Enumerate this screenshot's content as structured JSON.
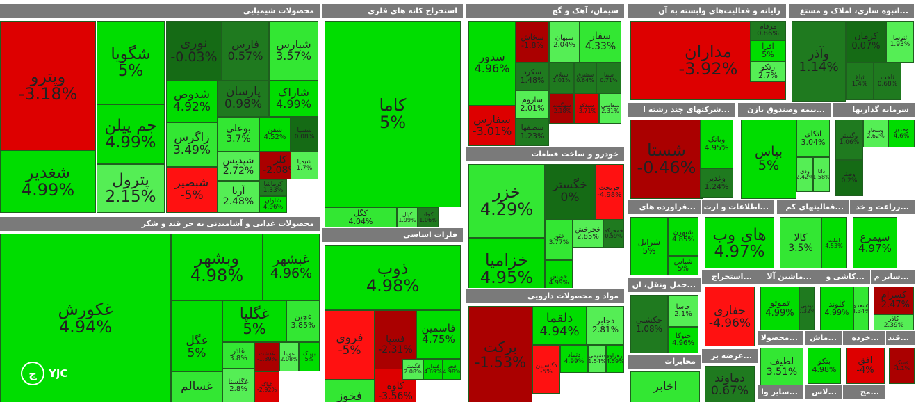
{
  "watermark": "YJC",
  "chart_data": {
    "type": "treemap",
    "colors": {
      "up_strong": "#00dd00",
      "up": "#33e733",
      "up_light": "#55ee55",
      "down": "#dd0000",
      "down_strong": "#ff1111",
      "down_dark": "#990000",
      "flat_dark": "#156b15"
    },
    "sectors": [
      {
        "name": "محصولات شیمیایی",
        "tiles": [
          {
            "symbol": "وپترو",
            "change": "-3.18%"
          },
          {
            "symbol": "شغدیر",
            "change": "4.99%"
          },
          {
            "symbol": "شگویا",
            "change": "5%"
          },
          {
            "symbol": "جم پیلن",
            "change": "4.99%"
          },
          {
            "symbol": "پترول",
            "change": "2.15%"
          },
          {
            "symbol": "نوری",
            "change": "-0.03%"
          },
          {
            "symbol": "فارس",
            "change": "0.57%"
          },
          {
            "symbol": "شپارس",
            "change": "3.57%"
          },
          {
            "symbol": "شدوص",
            "change": "4.92%"
          },
          {
            "symbol": "زاگرس",
            "change": "3.49%"
          },
          {
            "symbol": "شبصیر",
            "change": "-5%"
          },
          {
            "symbol": "پارسان",
            "change": "0.98%"
          },
          {
            "symbol": "شاراک",
            "change": "4.99%"
          },
          {
            "symbol": "بوعلی",
            "change": "3.7%"
          },
          {
            "symbol": "شفن",
            "change": "4.52%"
          },
          {
            "symbol": "شپدیس",
            "change": "2.72%"
          },
          {
            "symbol": "آریا",
            "change": "2.48%"
          },
          {
            "symbol": "کلر",
            "change": "-2.08%"
          },
          {
            "symbol": "شسپا",
            "change": "0.08%"
          },
          {
            "symbol": "شیمیا",
            "change": "1.7%"
          },
          {
            "symbol": "کرماشا",
            "change": "1.33%"
          },
          {
            "symbol": "شاوان",
            "change": "4.96%"
          }
        ]
      },
      {
        "name": "محصولات غذایی و آشامیدنی به جز قند و شکر",
        "tiles": [
          {
            "symbol": "غکورش",
            "change": "4.94%"
          },
          {
            "symbol": "وبشهر",
            "change": "4.98%"
          },
          {
            "symbol": "غبشهر",
            "change": "4.96%"
          },
          {
            "symbol": "غگل",
            "change": "5%"
          },
          {
            "symbol": "غگلپا",
            "change": "5%"
          },
          {
            "symbol": "غچین",
            "change": "3.85%"
          },
          {
            "symbol": "غسالم",
            "change": ""
          },
          {
            "symbol": "غاذر",
            "change": "3.8%"
          },
          {
            "symbol": "غگلستا",
            "change": "2.8%"
          },
          {
            "symbol": "غدشت",
            "change": "-1.39%"
          },
          {
            "symbol": "غپاک",
            "change": "-2.92%"
          },
          {
            "symbol": "غویتا",
            "change": "2.08%"
          },
          {
            "symbol": "بهپاک",
            "change": "5%"
          }
        ]
      },
      {
        "name": "استخراج کانه های فلزی",
        "tiles": [
          {
            "symbol": "کاما",
            "change": "5%"
          },
          {
            "symbol": "کگل",
            "change": "4.04%"
          },
          {
            "symbol": "کیال",
            "change": "1.99%"
          },
          {
            "symbol": "کجاد",
            "change": "1.06%"
          }
        ]
      },
      {
        "name": "فلزات اساسی",
        "tiles": [
          {
            "symbol": "ذوب",
            "change": "4.98%"
          },
          {
            "symbol": "فروی",
            "change": "-5%"
          },
          {
            "symbol": "فسپا",
            "change": "-2.31%"
          },
          {
            "symbol": "فاسمین",
            "change": "4.75%"
          },
          {
            "symbol": "فخوز",
            "change": ""
          },
          {
            "symbol": "کاوه",
            "change": "-3.56%"
          },
          {
            "symbol": "فگستر",
            "change": "2.08%"
          },
          {
            "symbol": "فنوال",
            "change": "4.69%"
          },
          {
            "symbol": "فجر",
            "change": "4.98%"
          }
        ]
      },
      {
        "name": "سیمان، آهک و گچ",
        "tiles": [
          {
            "symbol": "سدور",
            "change": "4.96%"
          },
          {
            "symbol": "سفارس",
            "change": "-3.01%"
          },
          {
            "symbol": "سخاش",
            "change": "-1.8%"
          },
          {
            "symbol": "سبهان",
            "change": "2.04%"
          },
          {
            "symbol": "سفار",
            "change": "4.33%"
          },
          {
            "symbol": "سکرد",
            "change": "1.48%"
          },
          {
            "symbol": "ساروم",
            "change": "2.01%"
          },
          {
            "symbol": "سصفها",
            "change": "1.23%"
          },
          {
            "symbol": "سیلام",
            "change": "1.01%"
          },
          {
            "symbol": "سشرق",
            "change": "0.64%"
          },
          {
            "symbol": "سیتا",
            "change": "0.71%"
          },
          {
            "symbol": "سهگمت",
            "change": "-2.18%"
          },
          {
            "symbol": "سیدکو",
            "change": "-3.71%"
          },
          {
            "symbol": "سفاسی",
            "change": "2.31%"
          }
        ]
      },
      {
        "name": "خودرو و ساخت قطعات",
        "tiles": [
          {
            "symbol": "خزر",
            "change": "4.29%"
          },
          {
            "symbol": "خزامیا",
            "change": "4.95%"
          },
          {
            "symbol": "خگستر",
            "change": "0%"
          },
          {
            "symbol": "خریخت",
            "change": "-4.98%"
          },
          {
            "symbol": "ختور",
            "change": "3.77%"
          },
          {
            "symbol": "خچرخش",
            "change": "2.85%"
          },
          {
            "symbol": "خمحرکه",
            "change": "0.59%"
          },
          {
            "symbol": "خویش",
            "change": "4.99%"
          }
        ]
      },
      {
        "name": "مواد و محصولات دارویی",
        "tiles": [
          {
            "symbol": "برکت",
            "change": "-1.53%"
          },
          {
            "symbol": "دلقما",
            "change": "4.94%"
          },
          {
            "symbol": "دجابر",
            "change": "2.81%"
          },
          {
            "symbol": "دکاسپین",
            "change": "-5%"
          },
          {
            "symbol": "دتماد",
            "change": "4.99%"
          },
          {
            "symbol": "دشیمی",
            "change": "1.54%"
          },
          {
            "symbol": "دزهراوی",
            "change": "4.59%"
          }
        ]
      },
      {
        "name": "رایانه و فعالیت‌های وابسته به آن",
        "tiles": [
          {
            "symbol": "مداران",
            "change": "-3.92%"
          },
          {
            "symbol": "مرقام",
            "change": "0.86%"
          },
          {
            "symbol": "افرا",
            "change": "5%"
          },
          {
            "symbol": "رتکو",
            "change": "2.7%"
          }
        ]
      },
      {
        "name": "...انبوه سازی، املاک و مستغ",
        "tiles": [
          {
            "symbol": "وآذر",
            "change": "1.14%"
          },
          {
            "symbol": "کرمان",
            "change": "0.07%"
          },
          {
            "symbol": "ثنوسا",
            "change": "1.93%"
          },
          {
            "symbol": "ثباغ",
            "change": "1.4%"
          },
          {
            "symbol": "ثاخت",
            "change": "0.68%"
          }
        ]
      },
      {
        "name": "...شرکتهای چند رشته ا",
        "tiles": [
          {
            "symbol": "شستا",
            "change": "-0.46%"
          },
          {
            "symbol": "وبانک",
            "change": "4.95%"
          },
          {
            "symbol": "وغدیر",
            "change": "1.24%"
          }
        ]
      },
      {
        "name": "...بیمه وصندوق بازن",
        "tiles": [
          {
            "symbol": "بپاس",
            "change": "5%"
          },
          {
            "symbol": "اتکای",
            "change": "3.04%"
          },
          {
            "symbol": "ودی",
            "change": "2.42%"
          },
          {
            "symbol": "دانا",
            "change": "1.58%"
          }
        ]
      },
      {
        "name": "سرمایه گذاریها",
        "tiles": [
          {
            "symbol": "وگستر",
            "change": "1.06%"
          },
          {
            "symbol": "وسخاو",
            "change": "2.62%"
          },
          {
            "symbol": "ومدیر",
            "change": "4.6%"
          },
          {
            "symbol": "وصنا",
            "change": "0.2%"
          }
        ]
      },
      {
        "name": "...فراورده های",
        "tiles": [
          {
            "symbol": "شرانل",
            "change": "5%"
          },
          {
            "symbol": "شبهرن",
            "change": "4.85%"
          },
          {
            "symbol": "شپاس",
            "change": "5%"
          }
        ]
      },
      {
        "name": "...اطلاعات و ارت",
        "tiles": [
          {
            "symbol": "های وب",
            "change": "4.97%"
          }
        ]
      },
      {
        "name": "...فعالیتهای کم",
        "tiles": [
          {
            "symbol": "کالا",
            "change": "3.5%"
          },
          {
            "symbol": "املت",
            "change": "4.53%"
          }
        ]
      },
      {
        "name": "...زراعت و خد",
        "tiles": [
          {
            "symbol": "سیمرغ",
            "change": "4.97%"
          }
        ]
      },
      {
        "name": "...حمل ونقل، ان",
        "tiles": [
          {
            "symbol": "حکشتی",
            "change": "1.08%"
          },
          {
            "symbol": "حاسا",
            "change": "2.1%"
          },
          {
            "symbol": "حتوکا",
            "change": "4.96%"
          }
        ]
      },
      {
        "name": "...استخراج",
        "tiles": [
          {
            "symbol": "حفاری",
            "change": "-4.96%"
          }
        ]
      },
      {
        "name": "...ماشین آلا",
        "tiles": [
          {
            "symbol": "تموتو",
            "change": "4.99%"
          },
          {
            "symbol": "تپمپی",
            "change": "0.32%"
          }
        ]
      },
      {
        "name": "...کاشی و",
        "tiles": [
          {
            "symbol": "کلوند",
            "change": "4.99%"
          },
          {
            "symbol": "کسعدی",
            "change": "4.34%"
          }
        ]
      },
      {
        "name": "...سایر م",
        "tiles": [
          {
            "symbol": "کسرام",
            "change": "-2.47%"
          },
          {
            "symbol": "کاذر",
            "change": "2.39%"
          }
        ]
      },
      {
        "name": "مخابرات",
        "tiles": [
          {
            "symbol": "اخابر",
            "change": ""
          }
        ]
      },
      {
        "name": "...عرضه بر",
        "tiles": [
          {
            "symbol": "دماوند",
            "change": "0.67%"
          }
        ]
      },
      {
        "name": "...محصولا",
        "tiles": [
          {
            "symbol": "لطیف",
            "change": "3.51%"
          }
        ]
      },
      {
        "name": "...ماش",
        "tiles": [
          {
            "symbol": "بتکو",
            "change": "4.98%"
          }
        ]
      },
      {
        "name": "...خرده",
        "tiles": [
          {
            "symbol": "افق",
            "change": "-4%"
          }
        ]
      },
      {
        "name": "...قند",
        "tiles": [
          {
            "symbol": "قشکر",
            "change": "-1.1%"
          }
        ]
      },
      {
        "name": "...سایر وا",
        "tiles": []
      },
      {
        "name": "...لاس",
        "tiles": []
      },
      {
        "name": "...مح",
        "tiles": []
      }
    ]
  }
}
